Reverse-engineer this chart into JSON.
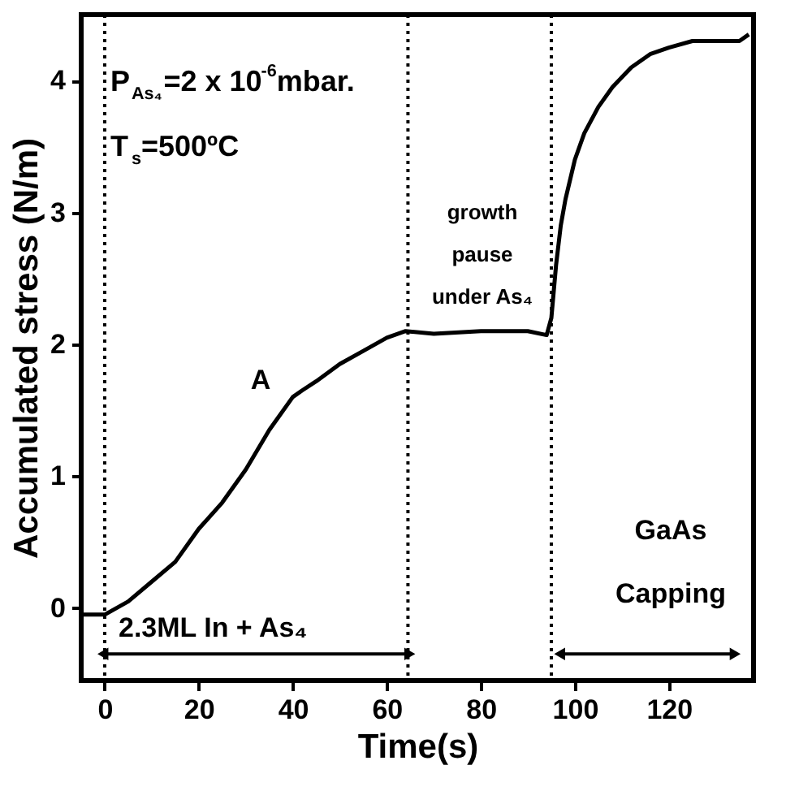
{
  "chart_data": {
    "type": "line",
    "xlabel": "Time(s)",
    "ylabel": "Accumulated stress (N/m)",
    "x": [
      -5,
      0,
      5,
      10,
      15,
      20,
      25,
      30,
      35,
      40,
      42,
      45,
      50,
      55,
      60,
      64,
      70,
      80,
      90,
      94,
      95,
      96,
      97,
      98,
      100,
      102,
      105,
      108,
      112,
      116,
      120,
      125,
      130,
      135,
      137
    ],
    "series": [
      {
        "color": "#000000",
        "values": [
          -0.05,
          -0.05,
          0.05,
          0.2,
          0.35,
          0.6,
          0.8,
          1.05,
          1.35,
          1.6,
          1.65,
          1.72,
          1.85,
          1.95,
          2.05,
          2.1,
          2.08,
          2.1,
          2.1,
          2.07,
          2.2,
          2.6,
          2.9,
          3.1,
          3.4,
          3.6,
          3.8,
          3.95,
          4.1,
          4.2,
          4.25,
          4.3,
          4.3,
          4.3,
          4.35
        ]
      }
    ],
    "xlim": [
      -5,
      138
    ],
    "ylim": [
      -0.55,
      4.5
    ],
    "xticks": [
      0,
      20,
      40,
      60,
      80,
      100,
      120
    ],
    "yticks": [
      0,
      1,
      2,
      3,
      4
    ],
    "ref_lines": [
      {
        "axis": "x",
        "value": 0,
        "line_style": "dotted",
        "color": "#000000"
      },
      {
        "axis": "x",
        "value": 64.5,
        "line_style": "dotted",
        "color": "#000000"
      },
      {
        "axis": "x",
        "value": 95,
        "line_style": "dotted",
        "color": "#000000"
      }
    ],
    "annotations": [
      "P$_{As₄}$=2 x 10$^{-6}$mbar.",
      "T$_{s}$=500ºC",
      {
        "text": "A",
        "x": 38,
        "y": 1.6
      },
      "growth\npause\nunder As₄",
      "2.3ML In + As₄",
      "GaAs\nCapping"
    ],
    "grid": false,
    "marker": "none",
    "line_style": "solid"
  }
}
